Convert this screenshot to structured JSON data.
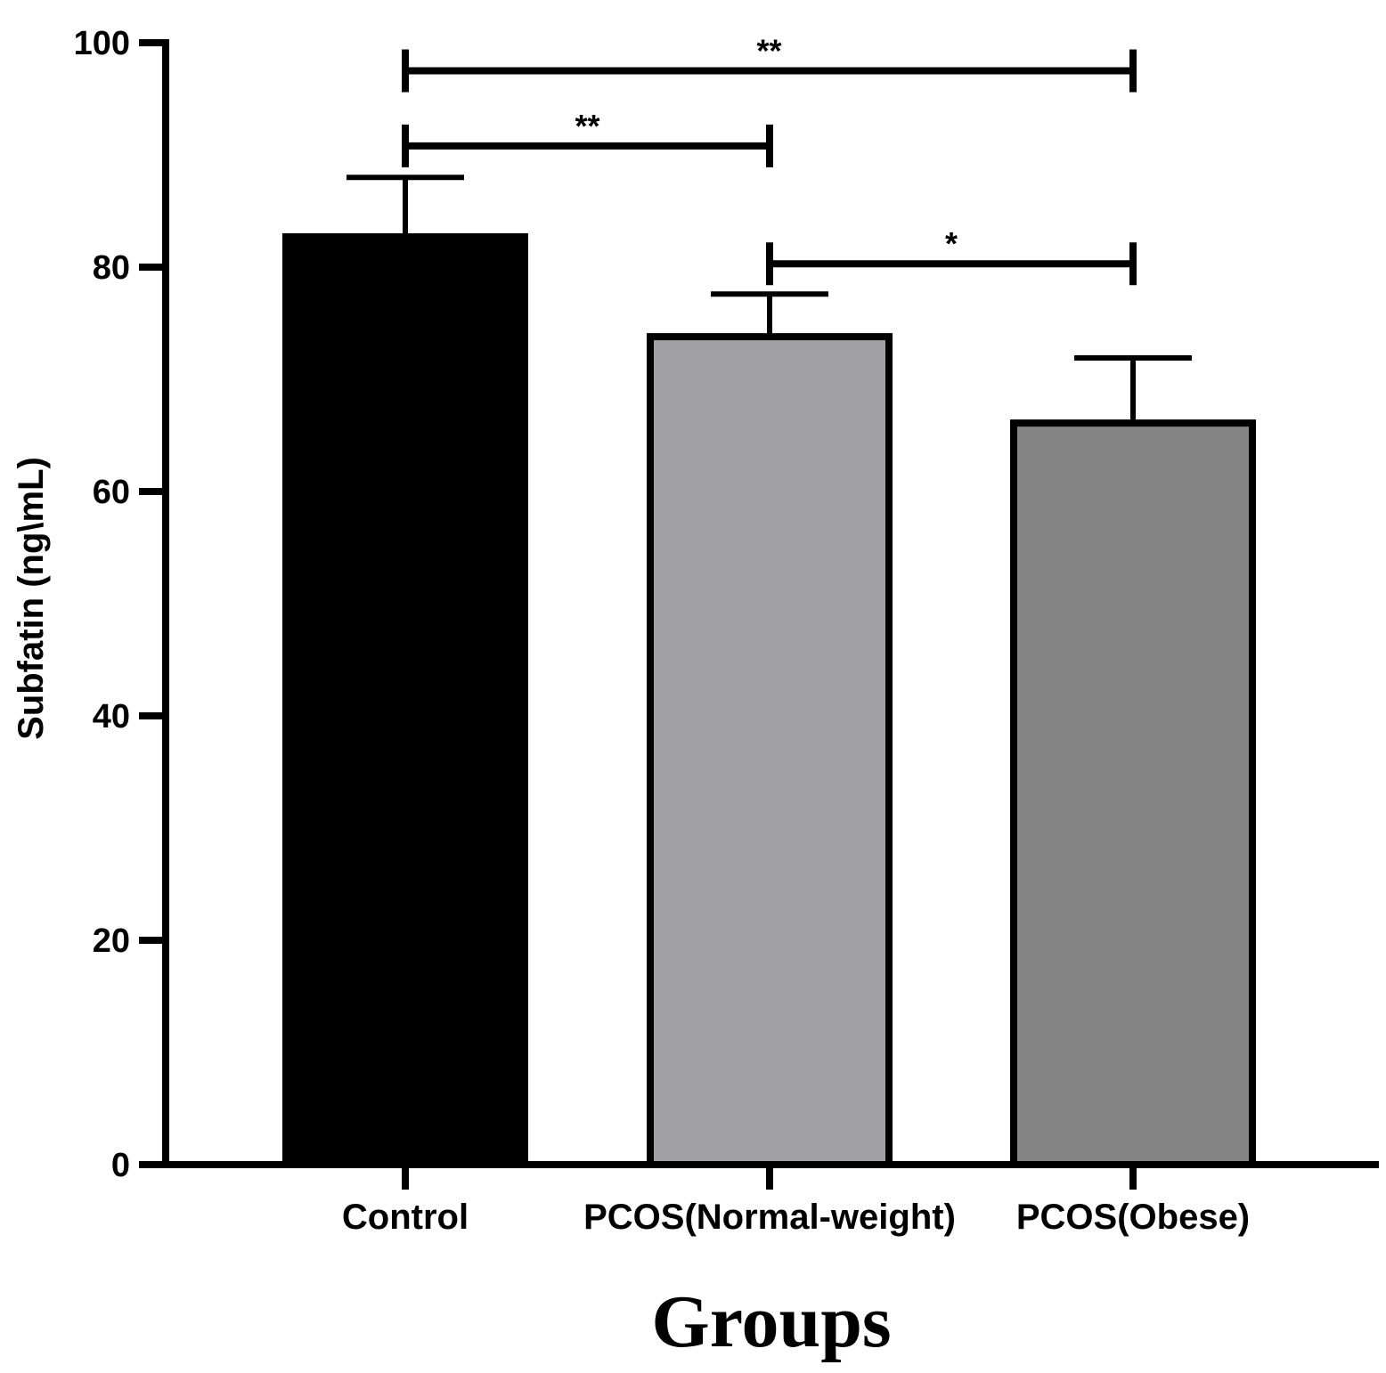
{
  "chart_data": {
    "type": "bar",
    "categories": [
      "Control",
      "PCOS(Normal-weight)",
      "PCOS(Obese)"
    ],
    "values": [
      82.7,
      73.8,
      66.1
    ],
    "errors": [
      5.3,
      3.8,
      5.8
    ],
    "colors": [
      "#000000",
      "#a2a1a6",
      "#848484"
    ],
    "xlabel": "Groups",
    "ylabel": "Subfatin (ng\\mL)",
    "ylim": [
      0,
      100
    ],
    "yticks": [
      0,
      20,
      40,
      60,
      80,
      100
    ],
    "ytick_labels": [
      "0",
      "20",
      "40",
      "60",
      "80",
      "100"
    ],
    "grid": false,
    "significance": [
      {
        "from": 0,
        "to": 2,
        "label": "**",
        "y": 97.5
      },
      {
        "from": 0,
        "to": 1,
        "label": "**",
        "y": 90.8
      },
      {
        "from": 1,
        "to": 2,
        "label": "*",
        "y": 80.3
      }
    ]
  }
}
